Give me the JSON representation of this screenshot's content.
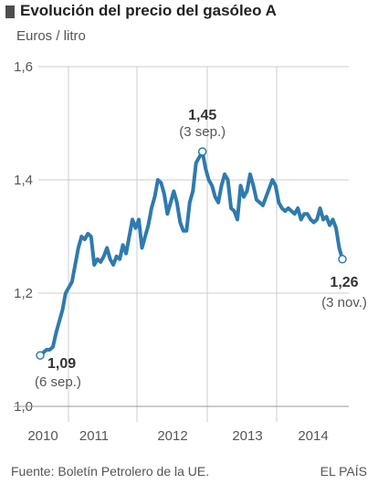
{
  "header": {
    "title": "Evolución del precio del gasóleo A",
    "subtitle": "Euros / litro"
  },
  "footer": {
    "source": "Fuente: Boletín Petrolero de la UE.",
    "brand": "EL PAÍS"
  },
  "colors": {
    "line": "#2f7aaf",
    "grid": "#cccccc",
    "text": "#555555",
    "bold": "#333333"
  },
  "chart_data": {
    "type": "line",
    "title": "Evolución del precio del gasóleo A",
    "ylabel": "Euros / litro",
    "xlabel": "",
    "ylim": [
      1.0,
      1.6
    ],
    "y_ticks": [
      "1,0",
      "1,2",
      "1,4",
      "1,6"
    ],
    "x_tick_labels": [
      "2010",
      "2011",
      "2012",
      "2013",
      "2014"
    ],
    "grid": true,
    "series": [
      {
        "values": [
          1.09,
          1.095,
          1.1,
          1.1,
          1.105,
          1.13,
          1.15,
          1.17,
          1.2,
          1.21,
          1.22,
          1.25,
          1.28,
          1.3,
          1.295,
          1.305,
          1.3,
          1.25,
          1.26,
          1.255,
          1.265,
          1.28,
          1.26,
          1.25,
          1.265,
          1.26,
          1.285,
          1.27,
          1.3,
          1.33,
          1.315,
          1.33,
          1.28,
          1.3,
          1.32,
          1.35,
          1.37,
          1.4,
          1.395,
          1.375,
          1.34,
          1.36,
          1.38,
          1.36,
          1.325,
          1.31,
          1.31,
          1.36,
          1.38,
          1.43,
          1.44,
          1.45,
          1.42,
          1.4,
          1.39,
          1.37,
          1.36,
          1.39,
          1.41,
          1.4,
          1.35,
          1.345,
          1.33,
          1.39,
          1.37,
          1.38,
          1.41,
          1.39,
          1.365,
          1.36,
          1.355,
          1.37,
          1.385,
          1.4,
          1.39,
          1.36,
          1.35,
          1.345,
          1.35,
          1.345,
          1.34,
          1.35,
          1.33,
          1.34,
          1.34,
          1.33,
          1.325,
          1.33,
          1.35,
          1.33,
          1.335,
          1.32,
          1.33,
          1.315,
          1.28,
          1.26
        ]
      }
    ],
    "annotations": [
      {
        "value": "1,09",
        "date": "(6 sep.)"
      },
      {
        "value": "1,45",
        "date": "(3 sep.)"
      },
      {
        "value": "1,26",
        "date": "(3 nov.)"
      }
    ]
  }
}
